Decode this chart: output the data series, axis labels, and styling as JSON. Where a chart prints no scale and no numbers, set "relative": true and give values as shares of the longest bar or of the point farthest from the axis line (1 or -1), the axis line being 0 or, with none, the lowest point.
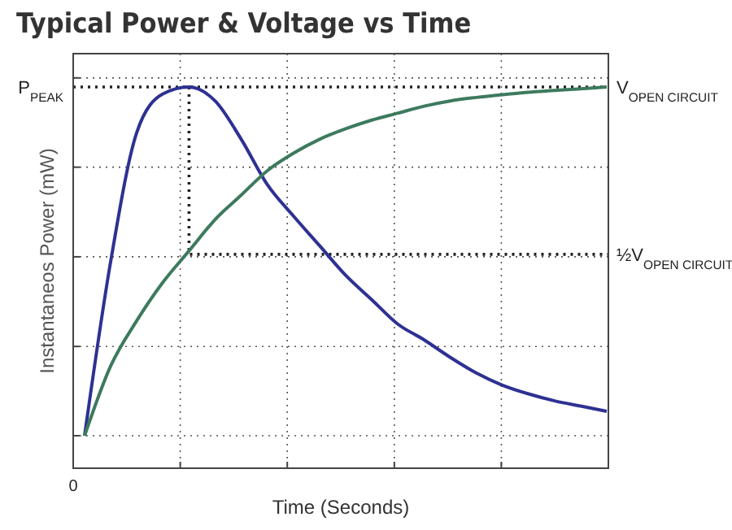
{
  "chart_data": {
    "type": "line",
    "title": "Typical Power & Voltage vs Time",
    "xlabel": "Time (Seconds)",
    "ylabel": "Instantaneos Power (mW)",
    "relative": true,
    "categories": [
      null,
      null,
      null,
      null,
      null,
      null,
      null,
      null,
      null,
      null,
      null,
      null,
      null,
      null,
      null,
      null,
      null,
      null,
      null,
      null,
      null
    ],
    "series": [
      {
        "color": "#2e3192",
        "values": [
          0,
          0.5,
          0.87,
          0.98,
          1.0,
          0.96,
          0.85,
          0.72,
          0.63,
          0.545,
          0.46,
          0.39,
          0.32,
          0.275,
          0.225,
          0.18,
          0.145,
          0.12,
          0.1,
          0.085,
          0.07
        ]
      },
      {
        "color": "#3d7a5e",
        "values": [
          0,
          0.2,
          0.33,
          0.44,
          0.53,
          0.62,
          0.69,
          0.76,
          0.81,
          0.85,
          0.88,
          0.905,
          0.925,
          0.945,
          0.96,
          0.97,
          0.978,
          0.985,
          0.99,
          0.995,
          1.0
        ]
      }
    ],
    "ref_lines": [
      {
        "axis": "y",
        "value": 1,
        "label": "P$_{PEAK}$",
        "line_style": "dotted"
      },
      {
        "axis": "y",
        "value": 0.52,
        "label": "½V$_{OPEN CIRCUIT}$",
        "line_style": "dotted"
      }
    ],
    "annotations": [
      "0",
      "V$_{OPEN CIRCUIT}$"
    ],
    "grid": true,
    "line_style": "solid"
  }
}
